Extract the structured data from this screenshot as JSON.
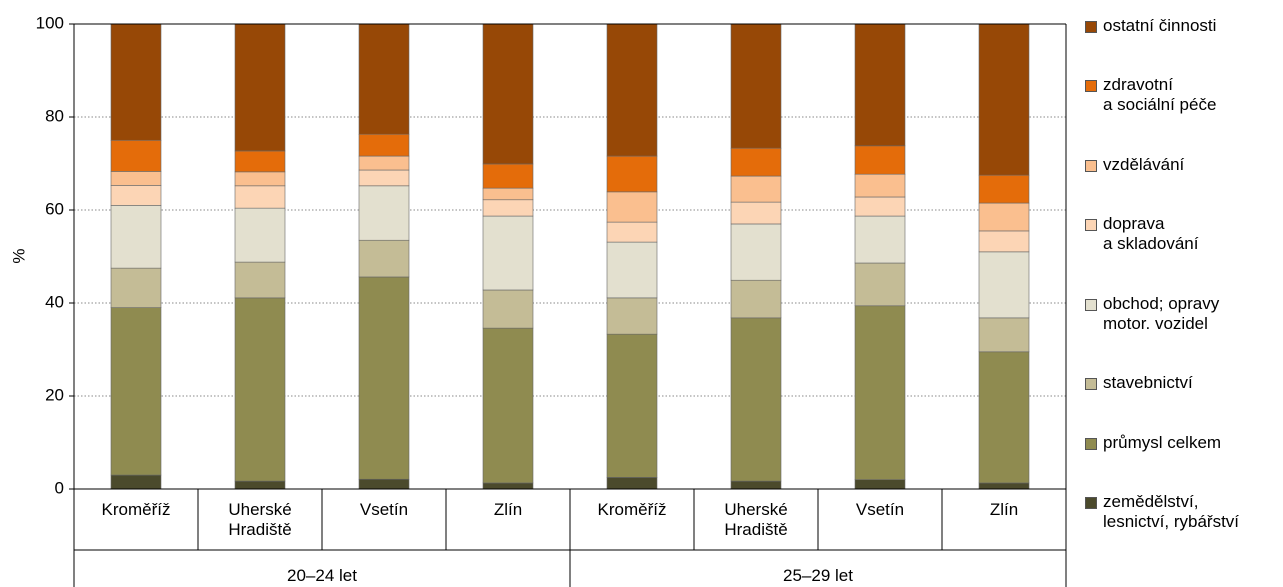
{
  "chart_data": {
    "type": "stacked_bar",
    "y_label": "%",
    "groups": [
      {
        "name": "20–24 let",
        "categories": [
          "Kroměříž",
          "Uherské\nHradiště",
          "Vsetín",
          "Zlín"
        ]
      },
      {
        "name": "25–29 let",
        "categories": [
          "Kroměříž",
          "Uherské\nHradiště",
          "Vsetín",
          "Zlín"
        ]
      }
    ],
    "ylim": [
      0,
      100
    ],
    "yticks": [
      0,
      20,
      40,
      60,
      80,
      100
    ],
    "grid": true,
    "series": [
      {
        "name": "zemědělství,\nlesnictví, rybářství",
        "color": "#4b4a2c",
        "values": [
          3,
          1.7,
          2.1,
          1.3,
          2.5,
          1.7,
          2,
          1.3
        ]
      },
      {
        "name": "průmysl celkem",
        "color": "#8f8b50",
        "values": [
          36,
          39.4,
          43.5,
          33.3,
          30.8,
          35.1,
          37.4,
          28.2
        ]
      },
      {
        "name": "stavebnictví",
        "color": "#c4bc96",
        "values": [
          8.5,
          7.7,
          7.9,
          8.2,
          7.8,
          8.1,
          9.2,
          7.3
        ]
      },
      {
        "name": "obchod; opravy\nmotor. vozidel",
        "color": "#e3e0cf",
        "values": [
          13.5,
          11.6,
          11.7,
          15.9,
          12,
          12.1,
          10.1,
          14.2
        ]
      },
      {
        "name": "doprava\na skladování",
        "color": "#fcd5b5",
        "values": [
          4.3,
          4.8,
          3.4,
          3.5,
          4.3,
          4.7,
          4.1,
          4.5
        ]
      },
      {
        "name": "vzdělávání",
        "color": "#fabf8f",
        "values": [
          3,
          3,
          3,
          2.5,
          6.5,
          5.6,
          4.9,
          6
        ]
      },
      {
        "name": "zdravotní\na sociální péče",
        "color": "#e46c0a",
        "values": [
          6.7,
          4.5,
          4.7,
          5.2,
          7.7,
          6,
          6.1,
          6
        ]
      },
      {
        "name": "ostatní činnosti",
        "color": "#974806",
        "values": [
          25,
          27.3,
          23.7,
          30.1,
          28.4,
          26.7,
          26.2,
          32.5
        ]
      }
    ]
  }
}
